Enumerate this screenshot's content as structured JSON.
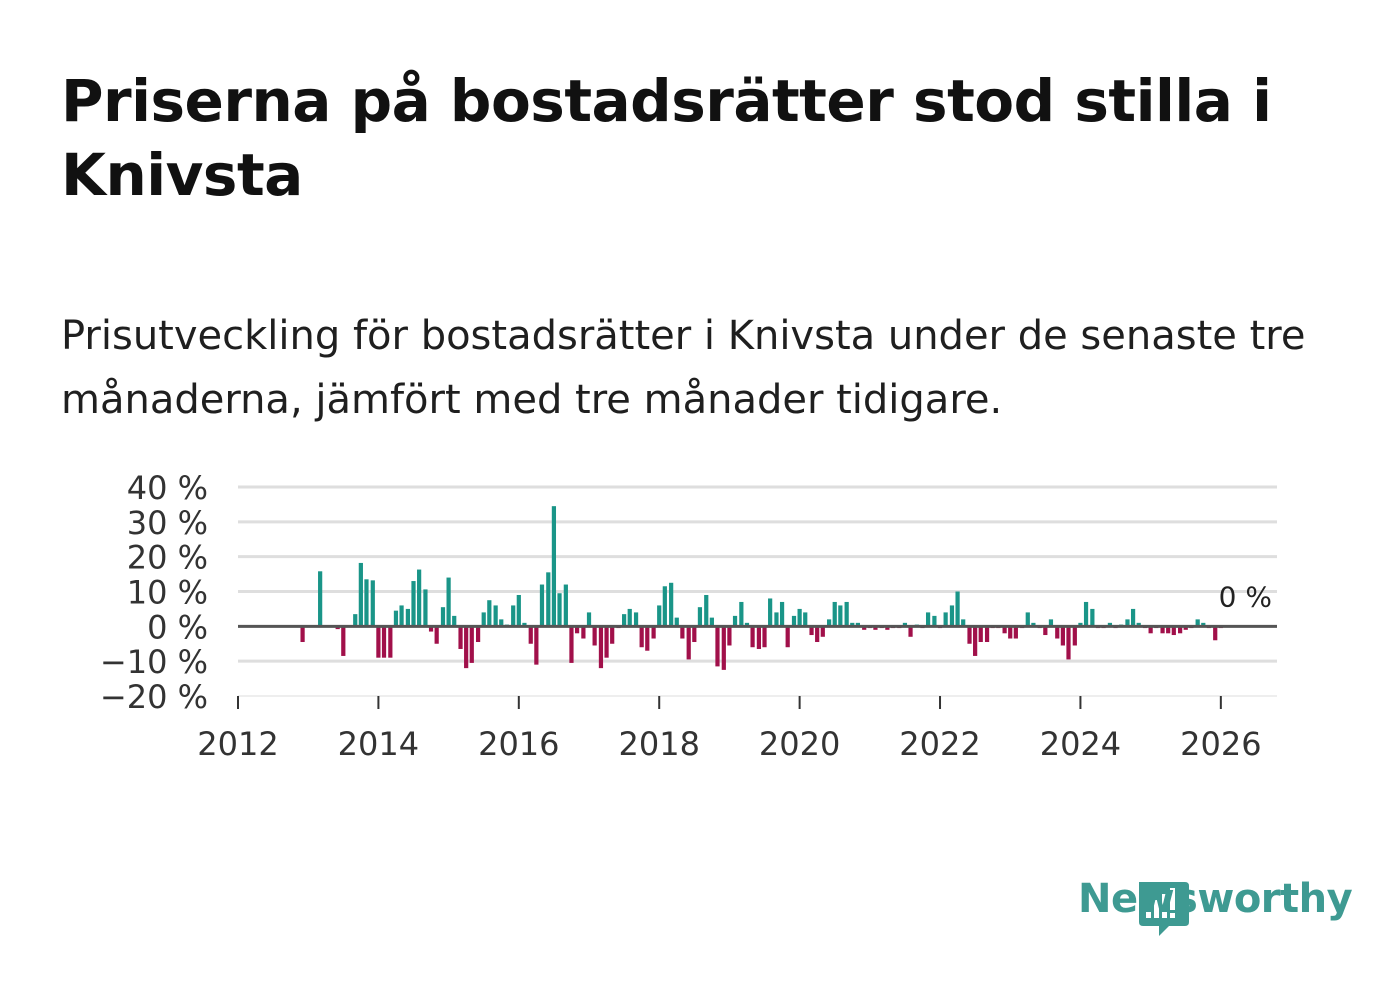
{
  "title": "Priserna på bostadsrätter stod stilla i Knivsta",
  "subtitle": "Prisutveckling för bostadsrätter i Knivsta under de senaste tre månaderna, jämfört med tre månader tidigare.",
  "brand": {
    "name": "Newsworthy",
    "color": "#3e9a92"
  },
  "colors": {
    "positive": "#1a9588",
    "negative": "#a1104a",
    "grid": "#dedede",
    "zero": "#555555"
  },
  "chart_data": {
    "type": "bar",
    "title": "Priserna på bostadsrätter stod stilla i Knivsta",
    "xlabel": "",
    "ylabel": "",
    "ylim": [
      -20,
      40
    ],
    "xlim": [
      2012,
      2026.8
    ],
    "yticks": [
      -20,
      -10,
      0,
      10,
      20,
      30,
      40
    ],
    "ytick_labels": [
      "−20 %",
      "−10 %",
      "0 %",
      "10 %",
      "20 %",
      "30 %",
      "40 %"
    ],
    "xticks": [
      2012,
      2014,
      2016,
      2018,
      2020,
      2022,
      2024,
      2026
    ],
    "xtick_labels": [
      "2012",
      "2014",
      "2016",
      "2018",
      "2020",
      "2022",
      "2024",
      "2026"
    ],
    "grid": true,
    "annotation": {
      "text": "0 %",
      "x": 2025.95,
      "y": 0
    },
    "x": [
      2012.92,
      2013.17,
      2013.42,
      2013.5,
      2013.67,
      2013.75,
      2013.83,
      2013.92,
      2014.0,
      2014.08,
      2014.17,
      2014.25,
      2014.33,
      2014.42,
      2014.5,
      2014.58,
      2014.67,
      2014.75,
      2014.83,
      2014.92,
      2015.0,
      2015.08,
      2015.17,
      2015.25,
      2015.33,
      2015.42,
      2015.5,
      2015.58,
      2015.67,
      2015.75,
      2015.83,
      2015.92,
      2016.0,
      2016.08,
      2016.17,
      2016.25,
      2016.33,
      2016.42,
      2016.5,
      2016.58,
      2016.67,
      2016.75,
      2016.83,
      2016.92,
      2017.0,
      2017.08,
      2017.17,
      2017.25,
      2017.33,
      2017.42,
      2017.5,
      2017.58,
      2017.67,
      2017.75,
      2017.83,
      2017.92,
      2018.0,
      2018.08,
      2018.17,
      2018.25,
      2018.33,
      2018.42,
      2018.5,
      2018.58,
      2018.67,
      2018.75,
      2018.83,
      2018.92,
      2019.0,
      2019.08,
      2019.17,
      2019.25,
      2019.33,
      2019.42,
      2019.5,
      2019.58,
      2019.67,
      2019.75,
      2019.83,
      2019.92,
      2020.0,
      2020.08,
      2020.17,
      2020.25,
      2020.33,
      2020.42,
      2020.5,
      2020.58,
      2020.67,
      2020.75,
      2020.83,
      2020.92,
      2021.0,
      2021.08,
      2021.17,
      2021.25,
      2021.33,
      2021.42,
      2021.5,
      2021.58,
      2021.67,
      2021.75,
      2021.83,
      2021.92,
      2022.0,
      2022.08,
      2022.17,
      2022.25,
      2022.33,
      2022.42,
      2022.5,
      2022.58,
      2022.67,
      2022.75,
      2022.83,
      2022.92,
      2023.0,
      2023.08,
      2023.17,
      2023.25,
      2023.33,
      2023.42,
      2023.5,
      2023.58,
      2023.67,
      2023.75,
      2023.83,
      2023.92,
      2024.0,
      2024.08,
      2024.17,
      2024.25,
      2024.33,
      2024.42,
      2024.5,
      2024.58,
      2024.67,
      2024.75,
      2024.83,
      2024.92,
      2025.0,
      2025.08,
      2025.17,
      2025.25,
      2025.33,
      2025.42,
      2025.5,
      2025.58,
      2025.67,
      2025.75,
      2025.83,
      2025.92,
      2026.0
    ],
    "values": [
      -4.5,
      15.8,
      -0.8,
      -8.5,
      3.5,
      18.2,
      13.5,
      13.2,
      -9.0,
      -9.0,
      -9.0,
      4.5,
      6.0,
      5.0,
      13.0,
      16.3,
      10.6,
      -1.5,
      -5.0,
      5.5,
      14.0,
      3.0,
      -6.5,
      -12.0,
      -10.5,
      -4.5,
      4.0,
      7.5,
      6.0,
      2.0,
      0.5,
      6.0,
      9.0,
      1.0,
      -5.0,
      -11.0,
      12.0,
      15.5,
      34.5,
      9.5,
      12.0,
      -10.5,
      -2.0,
      -3.5,
      4.0,
      -5.5,
      -12.0,
      -9.0,
      -5.0,
      -0.5,
      3.5,
      5.0,
      4.0,
      -6.0,
      -7.0,
      -3.5,
      6.0,
      11.5,
      12.5,
      2.5,
      -3.5,
      -9.5,
      -4.5,
      5.5,
      9.0,
      2.5,
      -11.5,
      -12.5,
      -5.5,
      3.0,
      7.0,
      1.0,
      -6.0,
      -6.5,
      -6.0,
      8.0,
      4.0,
      7.0,
      -6.0,
      3.0,
      5.0,
      4.0,
      -2.5,
      -4.5,
      -3.0,
      2.0,
      7.0,
      6.0,
      7.0,
      1.0,
      1.0,
      -1.0,
      -0.5,
      -1.0,
      -0.5,
      -1.0,
      -0.5,
      -0.5,
      1.0,
      -3.0,
      0.5,
      -0.5,
      4.0,
      3.0,
      -0.5,
      4.0,
      6.0,
      10.0,
      2.0,
      -5.0,
      -8.5,
      -4.5,
      -4.5,
      -0.5,
      -0.5,
      -2.0,
      -3.5,
      -3.5,
      -0.5,
      4.0,
      1.0,
      -0.5,
      -2.5,
      2.0,
      -3.5,
      -5.5,
      -9.5,
      -5.5,
      1.0,
      7.0,
      5.0,
      -0.5,
      -0.5,
      1.0,
      -0.5,
      0.5,
      2.0,
      5.0,
      1.0,
      -0.5,
      -2.0,
      -0.5,
      -2.0,
      -2.0,
      -2.5,
      -2.0,
      -1.0,
      -0.5,
      2.0,
      1.0,
      -0.5,
      -4.0,
      -0.5
    ]
  }
}
